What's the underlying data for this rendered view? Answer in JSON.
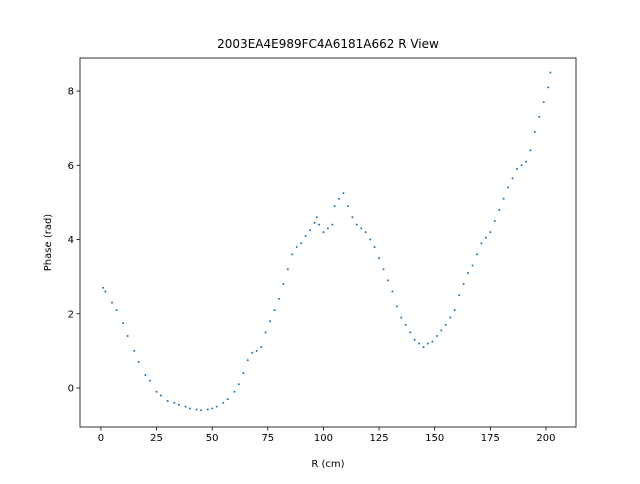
{
  "chart_data": {
    "type": "scatter",
    "title": "2003EA4E989FC4A6181A662 R View",
    "x_label": "R (cm)",
    "y_label": "Phase (rad)",
    "color": "#1f77b4",
    "x": [
      1,
      2,
      5,
      7,
      10,
      12,
      15,
      17,
      20,
      22,
      25,
      27,
      30,
      33,
      35,
      38,
      40,
      43,
      45,
      48,
      50,
      52,
      55,
      57,
      60,
      62,
      64,
      66,
      68,
      70,
      72,
      74,
      76,
      78,
      80,
      82,
      84,
      86,
      88,
      90,
      92,
      94,
      96,
      97,
      98,
      100,
      102,
      104,
      105,
      107,
      109,
      111,
      113,
      115,
      117,
      119,
      121,
      123,
      125,
      127,
      129,
      131,
      133,
      135,
      137,
      139,
      141,
      143,
      145,
      147,
      149,
      151,
      153,
      155,
      157,
      159,
      161,
      163,
      165,
      167,
      169,
      171,
      173,
      175,
      177,
      179,
      181,
      183,
      185,
      187,
      189,
      191,
      193,
      195,
      197,
      199,
      201,
      202
    ],
    "values": [
      2.7,
      2.6,
      2.3,
      2.1,
      1.75,
      1.4,
      1.0,
      0.7,
      0.35,
      0.2,
      -0.1,
      -0.2,
      -0.35,
      -0.4,
      -0.45,
      -0.5,
      -0.55,
      -0.58,
      -0.6,
      -0.58,
      -0.55,
      -0.5,
      -0.4,
      -0.3,
      -0.1,
      0.1,
      0.4,
      0.75,
      0.95,
      1.0,
      1.1,
      1.5,
      1.8,
      2.1,
      2.4,
      2.8,
      3.2,
      3.6,
      3.8,
      3.9,
      4.1,
      4.25,
      4.45,
      4.6,
      4.4,
      4.2,
      4.3,
      4.4,
      4.9,
      5.1,
      5.25,
      4.9,
      4.6,
      4.4,
      4.3,
      4.2,
      4.0,
      3.8,
      3.5,
      3.2,
      2.9,
      2.6,
      2.2,
      1.9,
      1.7,
      1.5,
      1.3,
      1.2,
      1.1,
      1.2,
      1.25,
      1.4,
      1.55,
      1.7,
      1.9,
      2.1,
      2.5,
      2.8,
      3.1,
      3.3,
      3.6,
      3.9,
      4.05,
      4.2,
      4.5,
      4.8,
      5.1,
      5.4,
      5.65,
      5.9,
      6.0,
      6.1,
      6.4,
      6.9,
      7.3,
      7.7,
      8.1,
      8.5
    ],
    "xlim": [
      -9.4,
      213.5
    ],
    "xticks": [
      0,
      25,
      50,
      75,
      100,
      125,
      150,
      175,
      200
    ],
    "ylim": [
      -1.05,
      8.89
    ],
    "yticks": [
      0,
      2,
      4,
      6,
      8
    ]
  }
}
